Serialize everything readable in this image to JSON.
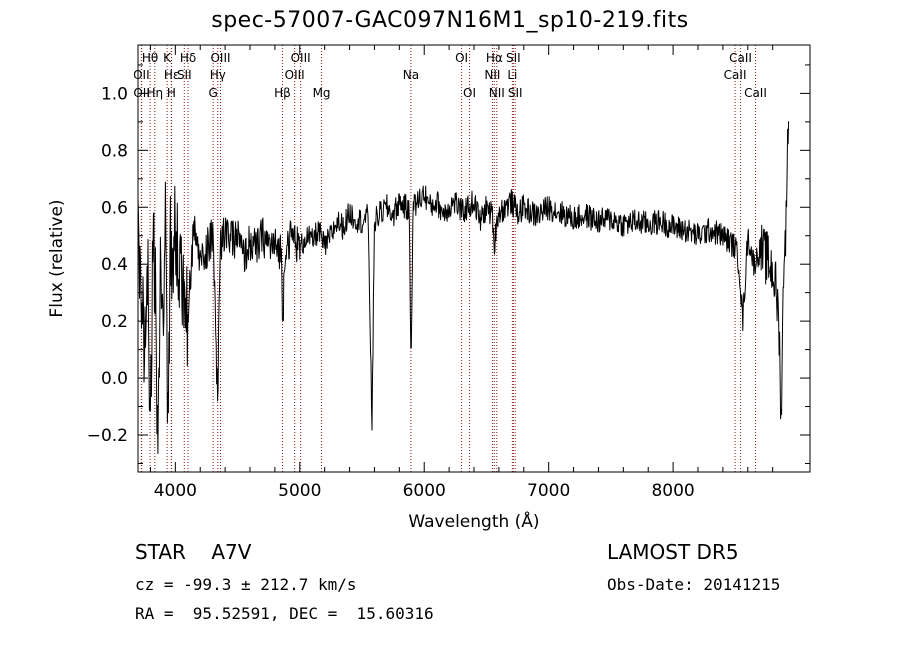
{
  "chart_data": {
    "type": "line",
    "title": "spec-57007-GAC097N16M1_sp10-219.fits",
    "xlabel": "Wavelength (Å)",
    "ylabel": "Flux (relative)",
    "xlim": [
      3700,
      9100
    ],
    "ylim": [
      -0.33,
      1.17
    ],
    "xticks": [
      4000,
      5000,
      6000,
      7000,
      8000
    ],
    "xtick_labels": [
      "4000",
      "5000",
      "6000",
      "7000",
      "8000"
    ],
    "yticks": [
      -0.2,
      0.0,
      0.2,
      0.4,
      0.6,
      0.8,
      1.0
    ],
    "ytick_labels": [
      "−0.2",
      "0.0",
      "0.2",
      "0.4",
      "0.6",
      "0.8",
      "1.0"
    ],
    "grid": false,
    "line_color": "#000000",
    "marker_color": "#8b1a1a",
    "series": [
      {
        "x": [
          3700,
          3750,
          3780,
          3800,
          3820,
          3840,
          3860,
          3880,
          3900,
          3920,
          3940,
          3960,
          3980,
          4000,
          4050,
          4100,
          4150,
          4200,
          4250,
          4300,
          4320,
          4340,
          4360,
          4400,
          4450,
          4500,
          4550,
          4600,
          4650,
          4700,
          4750,
          4800,
          4850,
          4862,
          4880,
          4900,
          4950,
          5000,
          5050,
          5100,
          5150,
          5200,
          5250,
          5300,
          5350,
          5400,
          5450,
          5500,
          5550,
          5580,
          5600,
          5650,
          5700,
          5750,
          5800,
          5850,
          5880,
          5893,
          5910,
          5950,
          6000,
          6050,
          6100,
          6150,
          6200,
          6250,
          6300,
          6350,
          6400,
          6450,
          6500,
          6550,
          6563,
          6580,
          6600,
          6650,
          6700,
          6750,
          6800,
          6900,
          7000,
          7100,
          7200,
          7300,
          7400,
          7500,
          7600,
          7700,
          7800,
          7900,
          8000,
          8100,
          8200,
          8300,
          8400,
          8450,
          8500,
          8530,
          8560,
          8600,
          8650,
          8700,
          8750,
          8800,
          8830,
          8850,
          8870,
          8890,
          8910,
          8930
        ],
        "y": [
          0.5,
          0.1,
          0.45,
          -0.25,
          0.55,
          0.3,
          -0.28,
          0.4,
          0.1,
          0.6,
          -0.2,
          0.5,
          0.3,
          0.55,
          0.35,
          0.2,
          0.55,
          0.4,
          0.45,
          0.5,
          0.25,
          -0.1,
          0.45,
          0.52,
          0.48,
          0.5,
          0.42,
          0.48,
          0.45,
          0.5,
          0.47,
          0.46,
          0.45,
          0.18,
          0.45,
          0.48,
          0.5,
          0.45,
          0.5,
          0.48,
          0.52,
          0.46,
          0.5,
          0.55,
          0.53,
          0.58,
          0.56,
          0.55,
          0.57,
          -0.18,
          0.55,
          0.58,
          0.6,
          0.57,
          0.62,
          0.6,
          0.58,
          0.05,
          0.6,
          0.62,
          0.65,
          0.6,
          0.62,
          0.58,
          0.6,
          0.62,
          0.58,
          0.6,
          0.62,
          0.55,
          0.6,
          0.57,
          0.45,
          0.55,
          0.58,
          0.6,
          0.62,
          0.58,
          0.6,
          0.57,
          0.6,
          0.58,
          0.56,
          0.57,
          0.55,
          0.56,
          0.54,
          0.55,
          0.54,
          0.55,
          0.53,
          0.52,
          0.5,
          0.52,
          0.5,
          0.48,
          0.46,
          0.4,
          0.2,
          0.5,
          0.4,
          0.45,
          0.42,
          0.38,
          0.3,
          0.2,
          -0.15,
          0.45,
          0.55,
          1.05
        ]
      }
    ],
    "lines": [
      {
        "name": "Hθ",
        "x": 3797,
        "row": 1
      },
      {
        "name": "OII",
        "x": 3727,
        "row": 2
      },
      {
        "name": "OII",
        "x": 3729,
        "row": 3
      },
      {
        "name": "Hη",
        "x": 3835,
        "row": 3
      },
      {
        "name": "K",
        "x": 3934,
        "row": 1
      },
      {
        "name": "Hε",
        "x": 3970,
        "row": 2
      },
      {
        "name": "H",
        "x": 3968,
        "row": 3
      },
      {
        "name": "Hδ",
        "x": 4102,
        "row": 1
      },
      {
        "name": "SII",
        "x": 4072,
        "row": 2
      },
      {
        "name": "OIII",
        "x": 4363,
        "row": 1
      },
      {
        "name": "Hγ",
        "x": 4341,
        "row": 2
      },
      {
        "name": "G",
        "x": 4304,
        "row": 3
      },
      {
        "name": "Hβ",
        "x": 4861,
        "row": 3
      },
      {
        "name": "OIII",
        "x": 5007,
        "row": 1
      },
      {
        "name": "OIII",
        "x": 4959,
        "row": 2
      },
      {
        "name": "Mg",
        "x": 5175,
        "row": 3
      },
      {
        "name": "Na",
        "x": 5893,
        "row": 2
      },
      {
        "name": "OI",
        "x": 6300,
        "row": 1
      },
      {
        "name": "OI",
        "x": 6364,
        "row": 3
      },
      {
        "name": "Hα",
        "x": 6563,
        "row": 1
      },
      {
        "name": "NII",
        "x": 6548,
        "row": 2
      },
      {
        "name": "NII",
        "x": 6583,
        "row": 3
      },
      {
        "name": "SII",
        "x": 6716,
        "row": 1
      },
      {
        "name": "Li",
        "x": 6708,
        "row": 2
      },
      {
        "name": "SII",
        "x": 6731,
        "row": 3
      },
      {
        "name": "CaII",
        "x": 8542,
        "row": 1
      },
      {
        "name": "CaII",
        "x": 8498,
        "row": 2
      },
      {
        "name": "CaII",
        "x": 8662,
        "row": 3
      }
    ]
  },
  "info": {
    "star_label": "STAR    A7V",
    "cz_label": "cz = -99.3 ± 212.7 km/s",
    "radec_label": "RA =  95.52591, DEC =  15.60316",
    "survey_label": "LAMOST DR5",
    "obs_label": "Obs-Date: 20141215"
  }
}
